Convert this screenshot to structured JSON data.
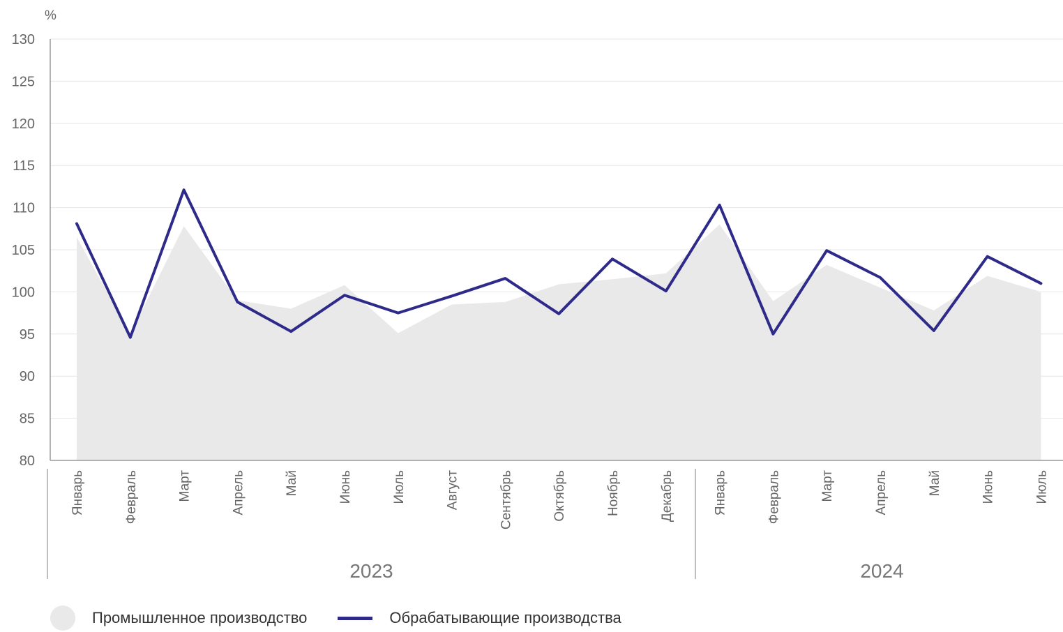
{
  "chart_data": {
    "type": "line",
    "unit_label": "%",
    "ylim": [
      80,
      130
    ],
    "yticks": [
      80,
      85,
      90,
      95,
      100,
      105,
      110,
      115,
      120,
      125,
      130
    ],
    "grid": true,
    "categories": [
      "Январь",
      "Февраль",
      "Март",
      "Апрель",
      "Май",
      "Июнь",
      "Июль",
      "Август",
      "Сентябрь",
      "Октябрь",
      "Ноябрь",
      "Декабрь",
      "Январь",
      "Февраль",
      "Март",
      "Апрель",
      "Май",
      "Июнь",
      "Июль"
    ],
    "groups": [
      {
        "label": "2023",
        "start": 0,
        "end": 11
      },
      {
        "label": "2024",
        "start": 12,
        "end": 18
      }
    ],
    "series": [
      {
        "name": "Промышленное производство",
        "kind": "area",
        "color": "#e9e9e9",
        "values": [
          106.5,
          95.0,
          107.8,
          99.0,
          98.0,
          100.8,
          95.1,
          98.5,
          98.8,
          100.9,
          101.5,
          102.2,
          108.0,
          98.9,
          103.2,
          100.5,
          97.8,
          101.9,
          100.0
        ]
      },
      {
        "name": "Обрабатывающие производства",
        "kind": "line",
        "color": "#2e2a8a",
        "values": [
          108.1,
          94.6,
          112.1,
          98.8,
          95.3,
          99.6,
          97.5,
          99.5,
          101.6,
          97.4,
          103.9,
          100.1,
          110.3,
          95.0,
          104.9,
          101.7,
          95.4,
          104.2,
          101.0
        ]
      }
    ],
    "legend": {
      "placement": "bottom-left",
      "items": [
        {
          "label": "Промышленное производство",
          "swatch": "circle",
          "color": "#e9e9e9"
        },
        {
          "label": "Обрабатывающие производства",
          "swatch": "line",
          "color": "#2e2a8a"
        }
      ]
    }
  }
}
